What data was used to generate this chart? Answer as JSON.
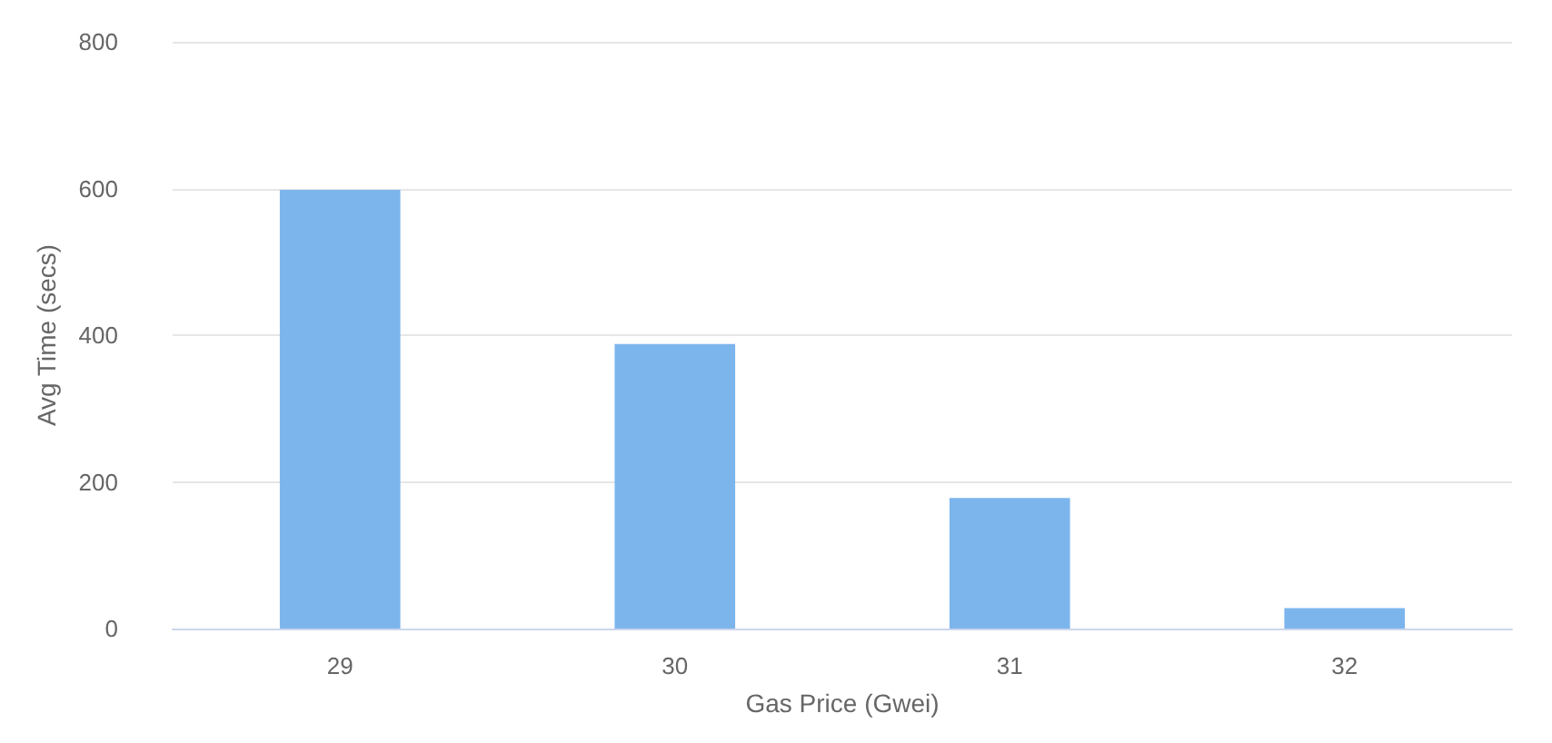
{
  "chart_data": {
    "type": "bar",
    "xlabel": "Gas Price (Gwei)",
    "ylabel": "Avg Time (secs)",
    "categories": [
      "29",
      "30",
      "31",
      "32"
    ],
    "values": [
      598,
      388,
      178,
      28
    ],
    "color": "#7cb5ec",
    "ylim": [
      0,
      800
    ],
    "yticks": [
      0,
      200,
      400,
      600,
      800
    ],
    "grid": "y"
  }
}
